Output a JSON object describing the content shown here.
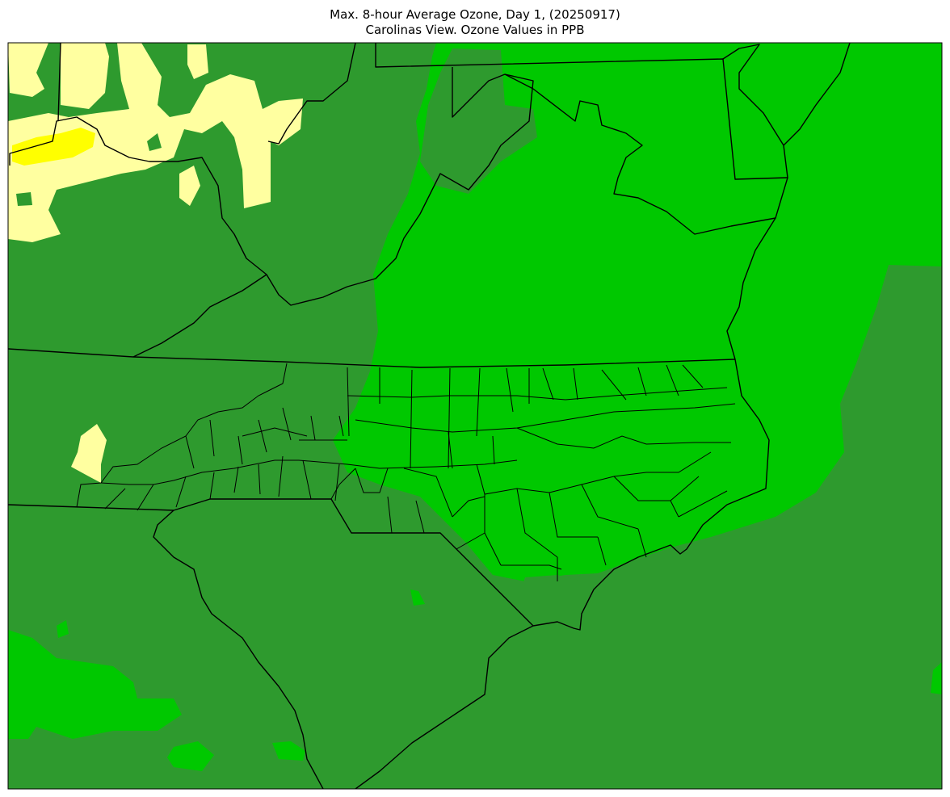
{
  "title": {
    "line1": "Max. 8-hour Average Ozone, Day 1, (20250917)",
    "line2": "Carolinas View. Ozone Values in PPB"
  },
  "colors": {
    "background_good": "#2e9a2e",
    "moderate_low": "#00c800",
    "light_yellow": "#ffffa0",
    "yellow": "#ffff00",
    "borders": "#000000"
  },
  "map": {
    "region": "Carolinas",
    "layers": [
      "ozone-contours",
      "state-borders",
      "nc-county-borders",
      "coastline"
    ]
  }
}
